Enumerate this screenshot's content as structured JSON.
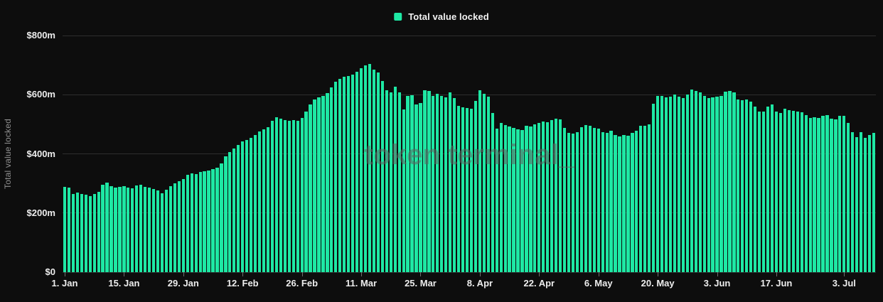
{
  "legend": {
    "label": "Total value locked"
  },
  "watermark": "token terminal_",
  "colors": {
    "background": "#0d0d0d",
    "bar_green": "#1ee8a4",
    "axis_text": "#ededed",
    "muted_text": "#8f8f8f",
    "gridline": "#2e2e2e"
  },
  "y_axis": {
    "title": "Total value locked",
    "ticks": [
      {
        "label": "$800m",
        "value": 800
      },
      {
        "label": "$600m",
        "value": 600
      },
      {
        "label": "$400m",
        "value": 400
      },
      {
        "label": "$200m",
        "value": 200
      },
      {
        "label": "$0",
        "value": 0
      }
    ]
  },
  "x_axis": {
    "ticks": [
      {
        "label": "1. Jan",
        "day_index": 0
      },
      {
        "label": "15. Jan",
        "day_index": 14
      },
      {
        "label": "29. Jan",
        "day_index": 28
      },
      {
        "label": "12. Feb",
        "day_index": 42
      },
      {
        "label": "26. Feb",
        "day_index": 56
      },
      {
        "label": "11. Mar",
        "day_index": 70
      },
      {
        "label": "25. Mar",
        "day_index": 84
      },
      {
        "label": "8. Apr",
        "day_index": 98
      },
      {
        "label": "22. Apr",
        "day_index": 112
      },
      {
        "label": "6. May",
        "day_index": 126
      },
      {
        "label": "20. May",
        "day_index": 140
      },
      {
        "label": "3. Jun",
        "day_index": 154
      },
      {
        "label": "17. Jun",
        "day_index": 168
      },
      {
        "label": "3. Jul",
        "day_index": 184
      }
    ]
  },
  "chart_data": {
    "type": "bar",
    "title": "Total value locked",
    "ylabel": "Total value locked",
    "unit": "$m",
    "ylim": [
      0,
      800
    ],
    "grid": true,
    "legend_position": "top-center",
    "frequency": "daily",
    "months": [
      [
        "Jan",
        31
      ],
      [
        "Feb",
        29
      ],
      [
        "Mar",
        31
      ],
      [
        "Apr",
        30
      ],
      [
        "May",
        31
      ],
      [
        "Jun",
        30
      ],
      [
        "Jul",
        10
      ]
    ],
    "values": [
      288,
      286,
      264,
      268,
      264,
      261,
      258,
      265,
      272,
      296,
      302,
      290,
      285,
      288,
      290,
      286,
      283,
      294,
      296,
      289,
      285,
      281,
      277,
      266,
      278,
      290,
      300,
      307,
      314,
      328,
      335,
      331,
      338,
      341,
      344,
      348,
      354,
      367,
      392,
      406,
      419,
      430,
      442,
      448,
      455,
      463,
      476,
      484,
      490,
      512,
      524,
      518,
      514,
      512,
      515,
      512,
      522,
      542,
      568,
      585,
      592,
      596,
      606,
      625,
      644,
      654,
      660,
      663,
      668,
      678,
      690,
      698,
      705,
      685,
      675,
      646,
      614,
      609,
      628,
      608,
      549,
      595,
      598,
      568,
      572,
      615,
      612,
      597,
      604,
      596,
      592,
      609,
      588,
      561,
      557,
      556,
      553,
      580,
      616,
      604,
      594,
      537,
      486,
      505,
      497,
      492,
      487,
      482,
      480,
      496,
      493,
      500,
      505,
      509,
      507,
      514,
      519,
      517,
      488,
      472,
      468,
      474,
      490,
      497,
      494,
      487,
      485,
      473,
      471,
      479,
      463,
      460,
      464,
      462,
      472,
      479,
      496,
      494,
      500,
      570,
      596,
      597,
      591,
      594,
      601,
      593,
      589,
      601,
      618,
      613,
      607,
      597,
      589,
      591,
      593,
      597,
      610,
      613,
      607,
      585,
      581,
      585,
      577,
      560,
      544,
      542,
      560,
      568,
      544,
      538,
      552,
      548,
      546,
      544,
      540,
      532,
      521,
      524,
      521,
      528,
      532,
      518,
      516,
      528,
      529,
      505,
      473,
      456,
      473,
      453,
      464,
      471
    ]
  }
}
